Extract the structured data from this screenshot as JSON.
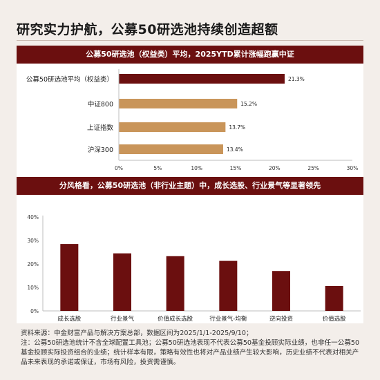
{
  "title": "研究实力护航，公募50研选池持续创造超额",
  "charts": {
    "top_header": "公募50研选池（权益类）平均，2025YTD累计涨幅跑赢中证",
    "bottom_header": "分风格看，公募50研选池（非行业主题）中，成长选股、行业景气等显著领先"
  },
  "chart_data": [
    {
      "type": "bar",
      "orientation": "horizontal",
      "categories": [
        "公募50研选池平均（权益类）",
        "中证800",
        "上证指数",
        "沪深300"
      ],
      "values": [
        21.3,
        15.2,
        13.7,
        13.4
      ],
      "value_labels": [
        "21.3%",
        "15.2%",
        "13.7%",
        "13.4%"
      ],
      "colors": [
        "#6b0f0f",
        "#c9955a",
        "#c9955a",
        "#c9955a"
      ],
      "xlim": [
        0,
        30
      ],
      "xticks": [
        "0%",
        "5%",
        "10%",
        "15%",
        "20%",
        "25%",
        "30%"
      ],
      "grid": false,
      "legend": false
    },
    {
      "type": "bar",
      "orientation": "vertical",
      "categories": [
        "成长选股",
        "行业景气",
        "价值成长选股",
        "行业景气-均衡",
        "逆向投资",
        "价值选股"
      ],
      "values": [
        28.5,
        24.5,
        23.3,
        21.3,
        17.0,
        10.6
      ],
      "colors": [
        "#6b0f0f"
      ],
      "ylim": [
        0,
        40
      ],
      "yticks": [
        "0%",
        "10%",
        "20%",
        "30%",
        "40%"
      ],
      "grid": false,
      "legend": false
    }
  ],
  "footnote": {
    "line1": "资料来源：中金财富产品与解决方案总部，数据区间为2025/1/1-2025/9/10；",
    "line2": "注：公募50研选池统计不含全球配置工具池；公募50研选池表现不代表公募50基金投顾实际业绩，也非任一公募50基金投顾实际投资组合的业绩；统计样本有限，策略有效性也将对产品业绩产生较大影响，历史业绩不代表对相关产品未来表现的承诺或保证，市场有风险，投资需谨慎。"
  }
}
